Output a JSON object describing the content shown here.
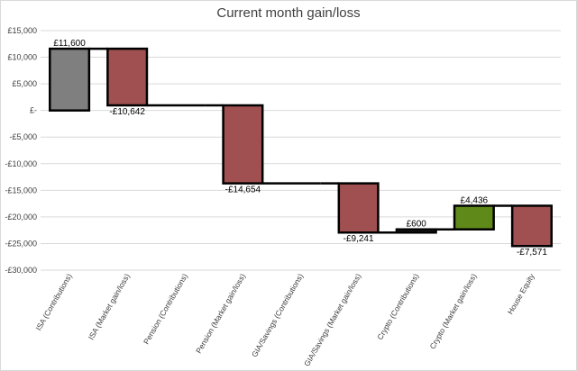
{
  "chart_data": {
    "type": "bar",
    "subtype": "waterfall",
    "title": "Current month gain/loss",
    "xlabel": "",
    "ylabel": "",
    "ylim": [
      -30000,
      15000
    ],
    "yticks": [
      15000,
      10000,
      5000,
      0,
      -5000,
      -10000,
      -15000,
      -20000,
      -25000,
      -30000
    ],
    "ytick_labels": [
      "£15,000",
      "£10,000",
      "£5,000",
      "£-",
      "-£5,000",
      "-£10,000",
      "-£15,000",
      "-£20,000",
      "-£25,000",
      "-£30,000"
    ],
    "grid": true,
    "legend": "none",
    "categories": [
      "ISA (Contributions)",
      "ISA (Market gain/loss)",
      "Pension (Contributions)",
      "Pension (Market gain/loss)",
      "GIA/Savings (Contributions)",
      "GIA/Savings (Market gain/loss)",
      "Crypto (Contributions)",
      "Crypto (Market gain/loss)",
      "House Equity"
    ],
    "values": [
      11600,
      -10642,
      0,
      -14654,
      0,
      -9241,
      600,
      4436,
      -7571
    ],
    "data_labels": [
      "£11,600",
      "-£10,642",
      "",
      "-£14,654",
      "",
      "-£9,241",
      "£600",
      "£4,436",
      "-£7,571"
    ],
    "colors": [
      "#7f7f7f",
      "#a05050",
      "#a05050",
      "#a05050",
      "#a05050",
      "#a05050",
      "#1a1a1a",
      "#5f8a1a",
      "#a05050"
    ]
  }
}
